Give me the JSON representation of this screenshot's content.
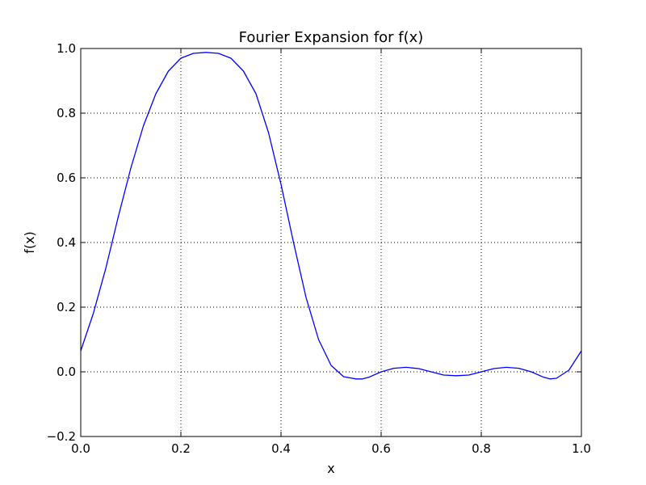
{
  "chart_data": {
    "type": "line",
    "title": "Fourier Expansion for f(x)",
    "xlabel": "x",
    "ylabel": "f(x)",
    "xlim": [
      0.0,
      1.0
    ],
    "ylim": [
      -0.2,
      1.0
    ],
    "grid": true,
    "x_ticks": [
      "0.0",
      "0.2",
      "0.4",
      "0.6",
      "0.8",
      "1.0"
    ],
    "y_ticks": [
      "−0.2",
      "0.0",
      "0.2",
      "0.4",
      "0.6",
      "0.8",
      "1.0"
    ],
    "series": [
      {
        "color": "#0000ff",
        "x": [
          0.0,
          0.025,
          0.05,
          0.075,
          0.1,
          0.125,
          0.15,
          0.175,
          0.2,
          0.225,
          0.25,
          0.275,
          0.3,
          0.325,
          0.35,
          0.375,
          0.4,
          0.425,
          0.45,
          0.475,
          0.5,
          0.525,
          0.55,
          0.5625,
          0.575,
          0.6,
          0.625,
          0.65,
          0.675,
          0.7,
          0.725,
          0.75,
          0.775,
          0.8,
          0.825,
          0.85,
          0.875,
          0.9,
          0.925,
          0.9375,
          0.95,
          0.975,
          1.0
        ],
        "y": [
          0.065,
          0.18,
          0.32,
          0.48,
          0.63,
          0.76,
          0.86,
          0.93,
          0.97,
          0.985,
          0.988,
          0.985,
          0.97,
          0.93,
          0.86,
          0.74,
          0.58,
          0.4,
          0.23,
          0.1,
          0.02,
          -0.015,
          -0.022,
          -0.022,
          -0.017,
          0.0,
          0.011,
          0.014,
          0.01,
          0.0,
          -0.01,
          -0.012,
          -0.01,
          0.0,
          0.01,
          0.014,
          0.011,
          0.0,
          -0.017,
          -0.022,
          -0.02,
          0.005,
          0.065
        ]
      }
    ]
  }
}
